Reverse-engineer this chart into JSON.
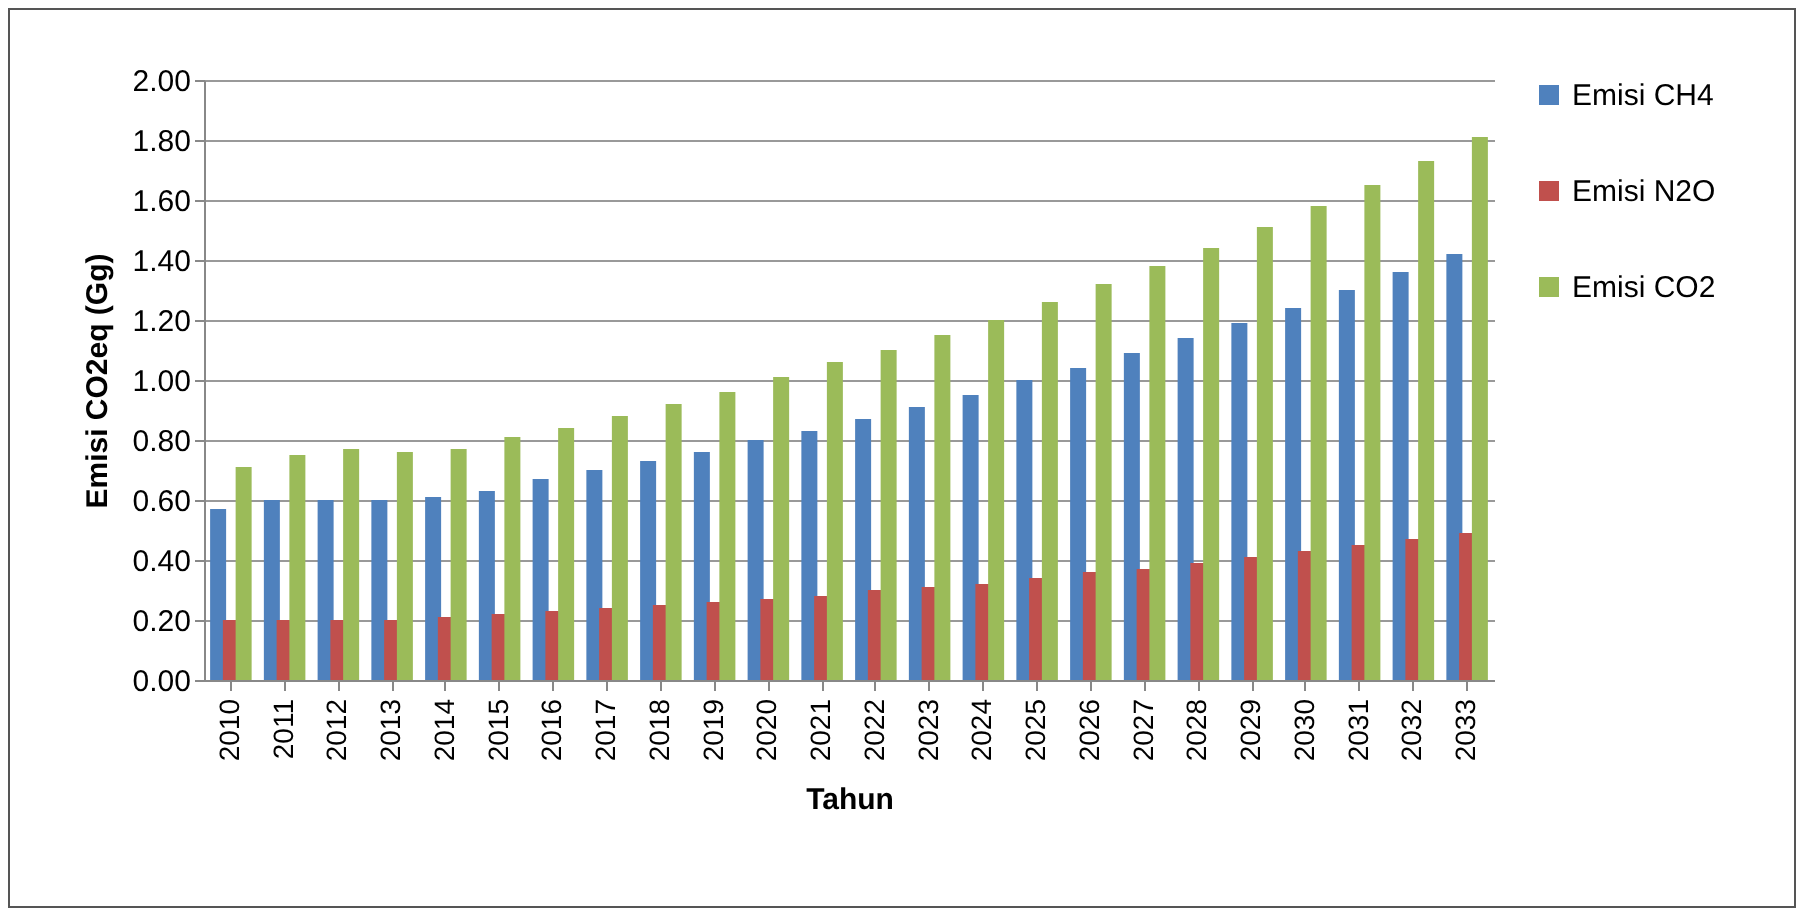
{
  "chart_data": {
    "type": "bar",
    "xlabel": "Tahun",
    "ylabel": "Emisi CO2eq (Gg)",
    "categories": [
      "2010",
      "2011",
      "2012",
      "2013",
      "2014",
      "2015",
      "2016",
      "2017",
      "2018",
      "2019",
      "2020",
      "2021",
      "2022",
      "2023",
      "2024",
      "2025",
      "2026",
      "2027",
      "2028",
      "2029",
      "2030",
      "2031",
      "2032",
      "2033"
    ],
    "series": [
      {
        "name": "Emisi CH4",
        "color": "#4f81bd",
        "values": [
          0.57,
          0.6,
          0.6,
          0.6,
          0.61,
          0.63,
          0.67,
          0.7,
          0.73,
          0.76,
          0.8,
          0.83,
          0.87,
          0.91,
          0.95,
          1.0,
          1.04,
          1.09,
          1.14,
          1.19,
          1.24,
          1.3,
          1.36,
          1.42
        ]
      },
      {
        "name": "Emisi N2O",
        "color": "#c0504d",
        "values": [
          0.2,
          0.2,
          0.2,
          0.2,
          0.21,
          0.22,
          0.23,
          0.24,
          0.25,
          0.26,
          0.27,
          0.28,
          0.3,
          0.31,
          0.32,
          0.34,
          0.36,
          0.37,
          0.39,
          0.41,
          0.43,
          0.45,
          0.47,
          0.49
        ]
      },
      {
        "name": "Emisi CO2",
        "color": "#9bbb59",
        "values": [
          0.71,
          0.75,
          0.77,
          0.76,
          0.77,
          0.81,
          0.84,
          0.88,
          0.92,
          0.96,
          1.01,
          1.06,
          1.1,
          1.15,
          1.2,
          1.26,
          1.32,
          1.38,
          1.44,
          1.51,
          1.58,
          1.65,
          1.73,
          1.81
        ]
      }
    ],
    "ylim": [
      0,
      2
    ],
    "yticks": [
      {
        "value": 0,
        "label": "0.00"
      },
      {
        "value": 0.2,
        "label": "0.20"
      },
      {
        "value": 0.4,
        "label": "0.40"
      },
      {
        "value": 0.6,
        "label": "0.60"
      },
      {
        "value": 0.8,
        "label": "0.80"
      },
      {
        "value": 1,
        "label": "1.00"
      },
      {
        "value": 1.2,
        "label": "1.20"
      },
      {
        "value": 1.4,
        "label": "1.40"
      },
      {
        "value": 1.6,
        "label": "1.60"
      },
      {
        "value": 1.8,
        "label": "1.80"
      },
      {
        "value": 2,
        "label": "2.00"
      }
    ],
    "grid": "y",
    "legend": "right"
  }
}
